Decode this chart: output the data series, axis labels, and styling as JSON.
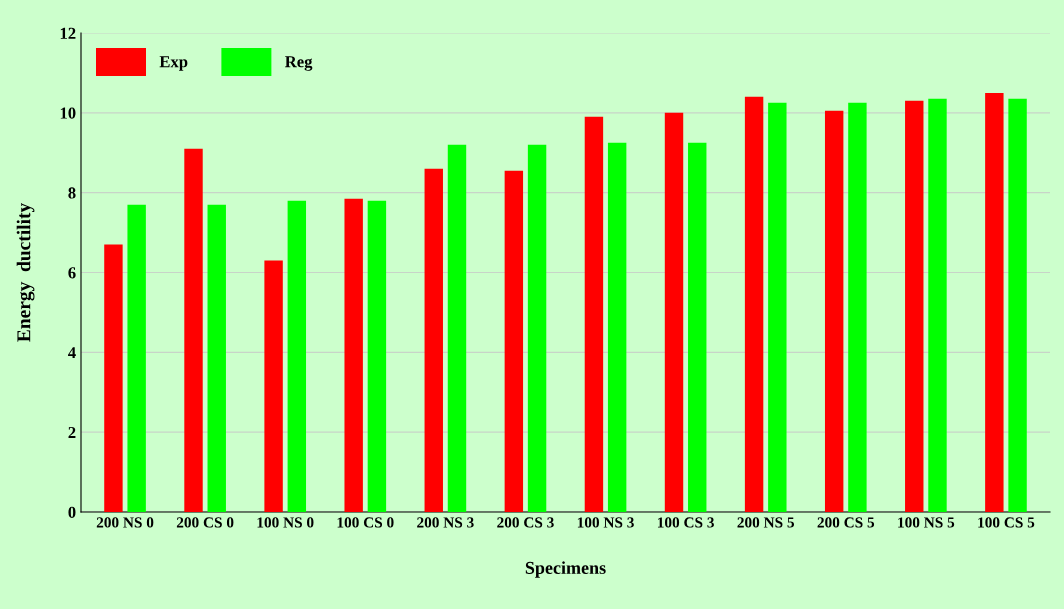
{
  "chart_data": {
    "type": "bar",
    "xlabel": "Specimens",
    "ylabel": "Energy  ductility",
    "categories": [
      "200 NS 0",
      "200 CS 0",
      "100 NS 0",
      "100 CS 0",
      "200 NS 3",
      "200 CS 3",
      "100 NS 3",
      "100 CS 3",
      "200 NS 5",
      "200 CS 5",
      "100 NS 5",
      "100 CS 5"
    ],
    "series": [
      {
        "name": "Exp",
        "color": "#ff0000",
        "values": [
          6.7,
          9.1,
          6.3,
          7.85,
          8.6,
          8.55,
          9.9,
          10.0,
          10.4,
          10.05,
          10.3,
          10.5
        ]
      },
      {
        "name": "Reg",
        "color": "#00ff00",
        "values": [
          7.7,
          7.7,
          7.8,
          7.8,
          9.2,
          9.2,
          9.25,
          9.25,
          10.25,
          10.25,
          10.35,
          10.35
        ]
      }
    ],
    "ylim": [
      0,
      12
    ],
    "yticks": [
      0,
      2,
      4,
      6,
      8,
      10,
      12
    ],
    "grid": "y",
    "legend": "top left"
  }
}
